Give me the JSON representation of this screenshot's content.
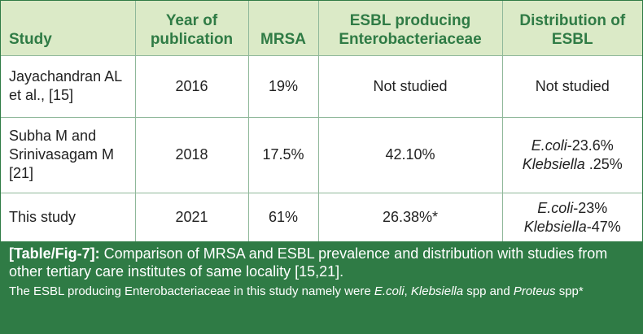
{
  "table": {
    "headers": [
      "Study",
      "Year of publication",
      "MRSA",
      "ESBL producing Enterobacteriaceae",
      "Distribution of ESBL"
    ],
    "rows": [
      {
        "study": "Jayachandran AL et al., [15]",
        "year": "2016",
        "mrsa": "19%",
        "esbl": "Not studied",
        "distribution": {
          "a": "Not studied"
        }
      },
      {
        "study": "Subha M and Srinivasagam M [21]",
        "year": "2018",
        "mrsa": "17.5%",
        "esbl": "42.10%",
        "distribution": {
          "a_italic": "E.coli",
          "a_rest": "-23.6%",
          "b_italic": "Klebsiella",
          "b_rest": " .25%"
        }
      },
      {
        "study": "This study",
        "year": "2021",
        "mrsa": "61%",
        "esbl": "26.38%*",
        "distribution": {
          "a_italic": "E.coli",
          "a_rest": "-23%",
          "b_italic": "Klebsiella",
          "b_rest": "-47%"
        }
      }
    ]
  },
  "caption": {
    "label": "[Table/Fig-7]:",
    "text": " Comparison of MRSA and ESBL prevalence and distribution with studies from other tertiary care institutes of same locality [15,21].",
    "note_1": "The ESBL producing Enterobacteriaceae in this study namely were ",
    "note_ecoli": "E.coli",
    "note_2": ", ",
    "note_kleb": "Klebsiella",
    "note_3": " spp and ",
    "note_proteus": "Proteus",
    "note_4": " spp*"
  }
}
